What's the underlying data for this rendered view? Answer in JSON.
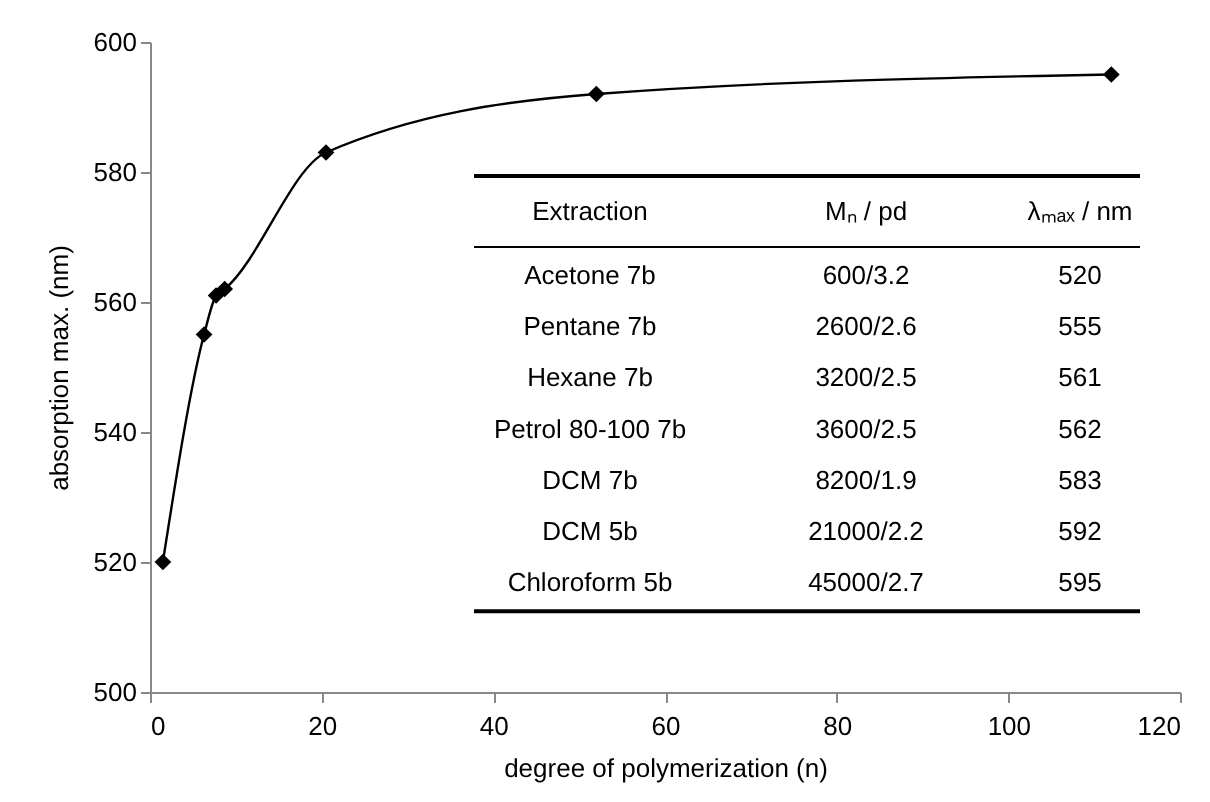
{
  "chart_data": {
    "type": "line",
    "xlabel": "degree of polymerization (n)",
    "ylabel": "absorption max. (nm)",
    "x": [
      1.5,
      6.3,
      7.7,
      8.7,
      20.5,
      52,
      112
    ],
    "series": [
      {
        "color": "#000000",
        "values": [
          520,
          555,
          561,
          562,
          583,
          592,
          595
        ]
      }
    ],
    "marker": "diamond",
    "line_style": "solid",
    "grid": false,
    "legend": false,
    "xlim": [
      0,
      120
    ],
    "xticks": [
      0,
      20,
      40,
      60,
      80,
      100,
      120
    ],
    "ylim": [
      500,
      600
    ],
    "yticks": [
      500,
      520,
      540,
      560,
      580,
      600
    ],
    "annotations": [
      "Extraction",
      "Mₙ / pd",
      "λₘₐₓ / nm",
      "Acetone 7b",
      "600/3.2",
      "520",
      "Pentane 7b",
      "2600/2.6",
      "555",
      "Hexane 7b",
      "3200/2.5",
      "561",
      "Petrol 80-100 7b",
      "3600/2.5",
      "562",
      "DCM 7b",
      "8200/1.9",
      "583",
      "DCM 5b",
      "21000/2.2",
      "592",
      "Chloroform 5b",
      "45000/2.7",
      "595"
    ]
  }
}
